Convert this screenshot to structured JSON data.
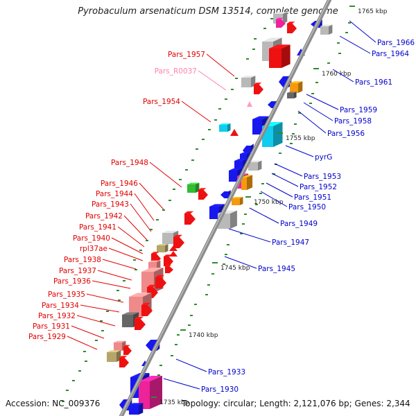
{
  "title": "Pyrobaculum arsenaticum DSM 13514, complete genome",
  "footer": {
    "accession_label": "Accession:",
    "accession": "NC_009376",
    "topology_label": "Topology:",
    "topology": "circular",
    "length_label": "Length:",
    "length": "2,121,076 bp",
    "genes_label": "Genes:",
    "genes": "2,344"
  },
  "colors": {
    "backbone": "#8c8c8c",
    "tick": "#2e8b2e",
    "left_label": "#e00000",
    "right_label": "#0000cc",
    "rna_label": "#ff80b0",
    "kbp_label": "#222222"
  },
  "ruler": [
    "1735 kbp",
    "1740 kbp",
    "1745 kbp",
    "1750 kbp",
    "1755 kbp",
    "1760 kbp",
    "1765 kbp"
  ],
  "genes_left": [
    {
      "name": "Pars_1957",
      "color": "red"
    },
    {
      "name": "Pars_R0037",
      "color": "pink"
    },
    {
      "name": "Pars_1954",
      "color": "red"
    },
    {
      "name": "Pars_1948",
      "color": "red"
    },
    {
      "name": "Pars_1946",
      "color": "red"
    },
    {
      "name": "Pars_1944",
      "color": "red"
    },
    {
      "name": "Pars_1943",
      "color": "red"
    },
    {
      "name": "Pars_1942",
      "color": "red"
    },
    {
      "name": "Pars_1941",
      "color": "red"
    },
    {
      "name": "Pars_1940",
      "color": "red"
    },
    {
      "name": "rpl37ae",
      "color": "red"
    },
    {
      "name": "Pars_1938",
      "color": "red"
    },
    {
      "name": "Pars_1937",
      "color": "red"
    },
    {
      "name": "Pars_1936",
      "color": "red"
    },
    {
      "name": "Pars_1935",
      "color": "red"
    },
    {
      "name": "Pars_1934",
      "color": "red"
    },
    {
      "name": "Pars_1932",
      "color": "red"
    },
    {
      "name": "Pars_1931",
      "color": "red"
    },
    {
      "name": "Pars_1929",
      "color": "red"
    }
  ],
  "genes_right": [
    {
      "name": "Pars_1966"
    },
    {
      "name": "Pars_1964"
    },
    {
      "name": "Pars_1961"
    },
    {
      "name": "Pars_1959"
    },
    {
      "name": "Pars_1958"
    },
    {
      "name": "Pars_1956"
    },
    {
      "name": "pyrG"
    },
    {
      "name": "Pars_1953"
    },
    {
      "name": "Pars_1952"
    },
    {
      "name": "Pars_1951"
    },
    {
      "name": "Pars_1950"
    },
    {
      "name": "Pars_1949"
    },
    {
      "name": "Pars_1947"
    },
    {
      "name": "Pars_1945"
    },
    {
      "name": "Pars_1933"
    },
    {
      "name": "Pars_1930"
    }
  ]
}
